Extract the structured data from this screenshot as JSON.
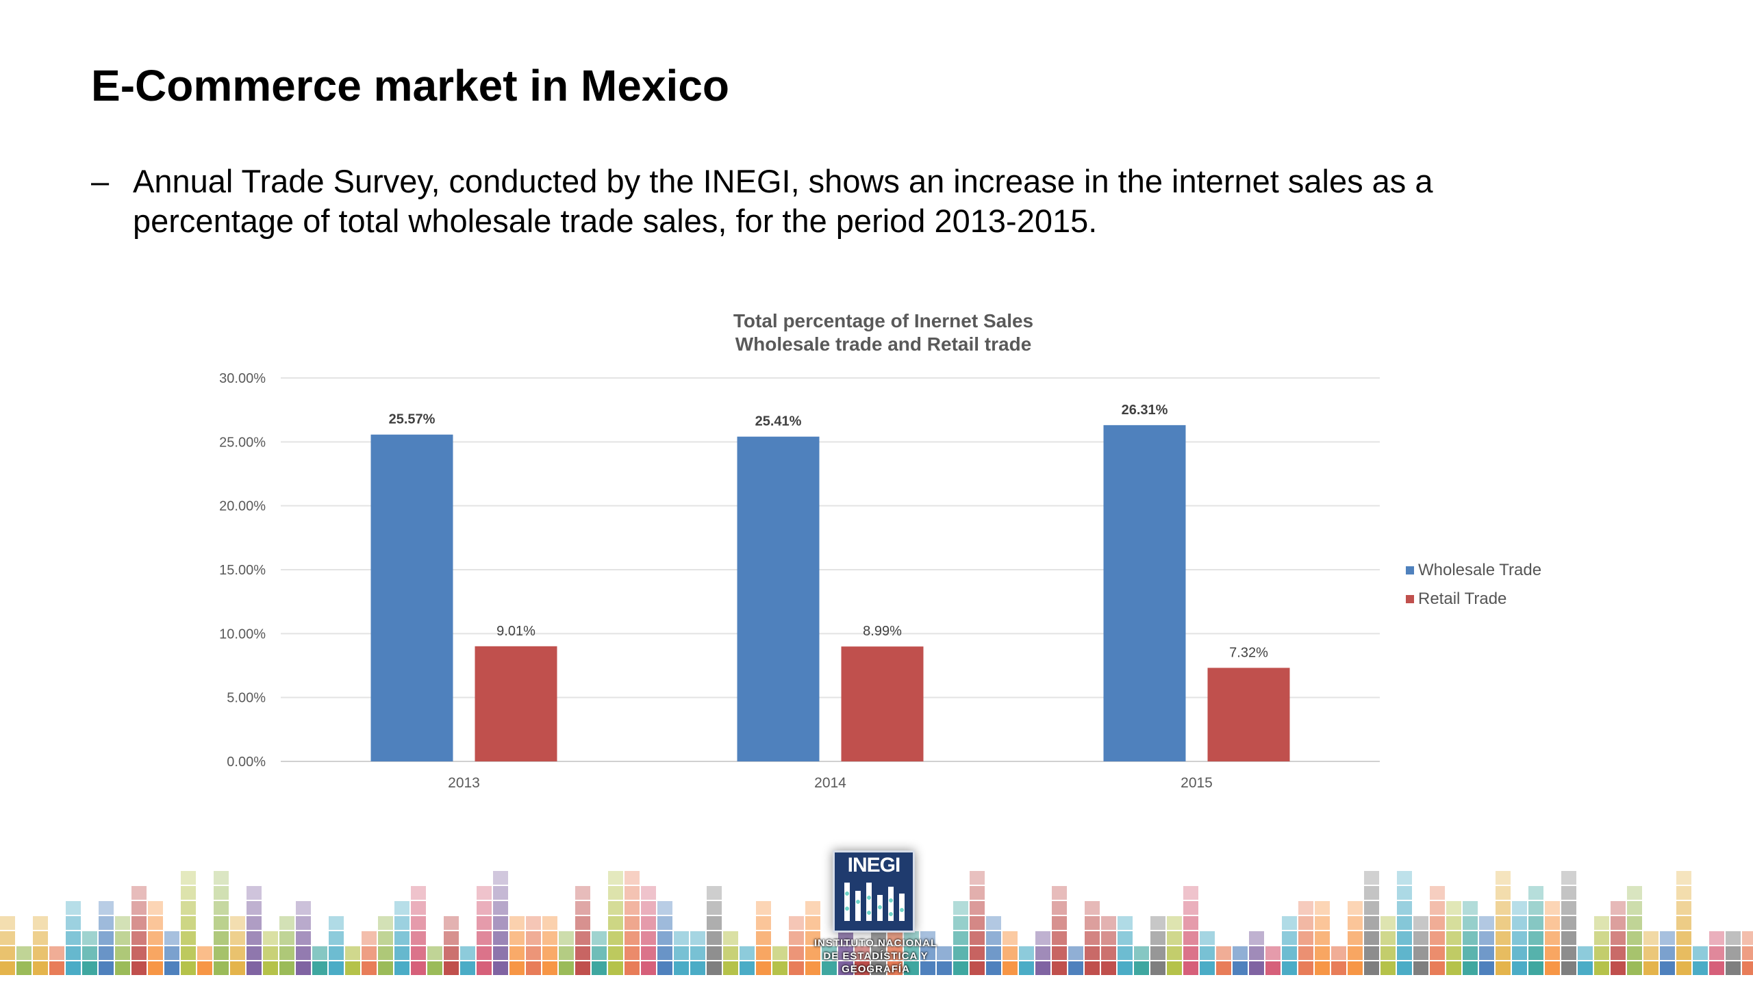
{
  "slide": {
    "title": "E-Commerce market in Mexico",
    "bullet_dash": "–",
    "bullet_text": "Annual Trade Survey, conducted by the INEGI, shows an increase in the internet sales as a percentage of total wholesale trade sales, for the period 2013-2015."
  },
  "chart_data": {
    "type": "bar",
    "title_lines": [
      "Total percentage of Inernet Sales",
      "Wholesale trade and Retail trade"
    ],
    "categories": [
      "2013",
      "2014",
      "2015"
    ],
    "series": [
      {
        "name": "Wholesale Trade",
        "values": [
          25.57,
          25.41,
          26.31
        ],
        "labels": [
          "25.57%",
          "25.41%",
          "26.31%"
        ],
        "color": "#4f81bd"
      },
      {
        "name": "Retail Trade",
        "values": [
          9.01,
          8.99,
          7.32
        ],
        "labels": [
          "9.01%",
          "8.99%",
          "7.32%"
        ],
        "color": "#c0504d"
      }
    ],
    "ylim": [
      0,
      30
    ],
    "yticks": [
      "0.00%",
      "5.00%",
      "10.00%",
      "15.00%",
      "20.00%",
      "25.00%",
      "30.00%"
    ],
    "grid": true,
    "legend_position": "right"
  },
  "logo": {
    "word": "INEGI",
    "caption_line1": "INSTITUTO NACIONAL",
    "caption_line2": "DE ESTADÍSTICA Y GEOGRAFÍA"
  },
  "colors": {
    "wholesale": "#4f81bd",
    "retail": "#c0504d",
    "footer_palette": [
      "#4f81bd",
      "#c0504d",
      "#9bbb59",
      "#8064a2",
      "#4bacc6",
      "#f79646",
      "#e4b44c",
      "#d6607a",
      "#7f7f7f",
      "#3fa7a0",
      "#e87d59",
      "#b5c24a"
    ]
  }
}
